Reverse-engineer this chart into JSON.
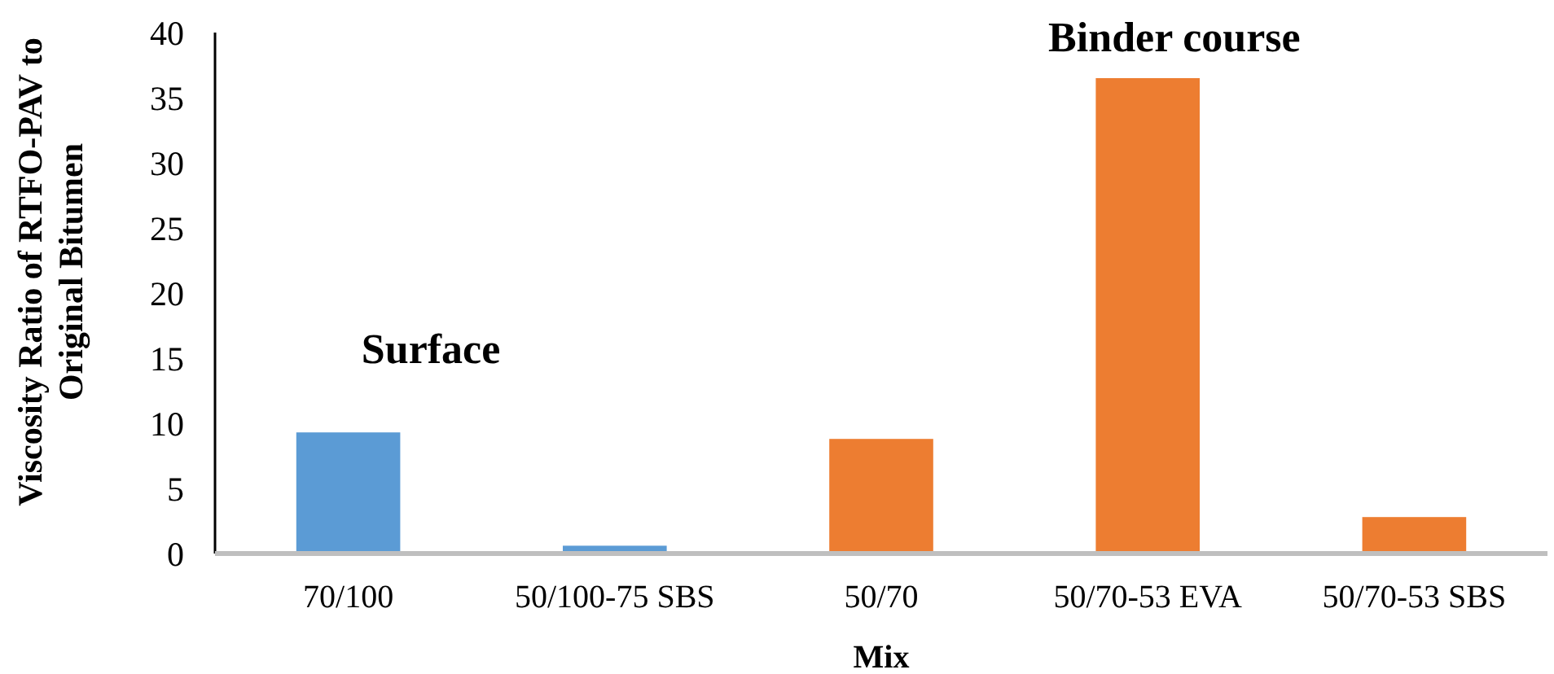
{
  "chart_data": {
    "type": "bar",
    "categories": [
      "70/100",
      "50/100-75 SBS",
      "50/70",
      "50/70-53 EVA",
      "50/70-53 SBS"
    ],
    "values": [
      9.3,
      0.6,
      8.8,
      36.5,
      2.8
    ],
    "colors": [
      "#5b9bd5",
      "#5b9bd5",
      "#ed7d31",
      "#ed7d31",
      "#ed7d31"
    ],
    "xlabel": "Mix",
    "ylabel": "Viscosity Ratio of RTFO-PAV to Original Bitumen",
    "ylim": [
      0,
      40
    ],
    "yticks": [
      0,
      5,
      10,
      15,
      20,
      25,
      30,
      35,
      40
    ],
    "annotations": [
      "Surface",
      "Binder course"
    ],
    "grid": false
  }
}
